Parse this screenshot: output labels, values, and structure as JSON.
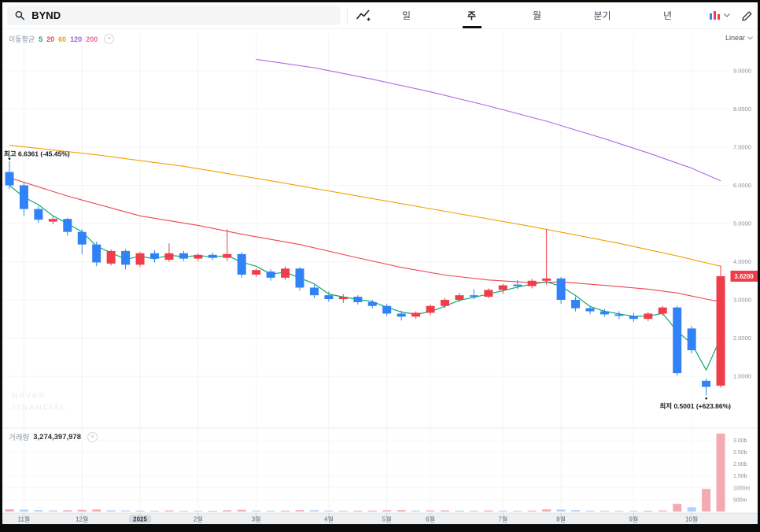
{
  "header": {
    "search_symbol": "BYND",
    "tabs": [
      {
        "label": "일",
        "active": false
      },
      {
        "label": "주",
        "active": true
      },
      {
        "label": "월",
        "active": false
      },
      {
        "label": "분기",
        "active": false
      },
      {
        "label": "년",
        "active": false
      }
    ],
    "icons": {
      "search": "magnifier",
      "chart_type": "line-chart-plus",
      "style": "colored-bars-with-chevron",
      "draw": "pencil"
    }
  },
  "legend": {
    "title": "이동평균",
    "periods": [
      {
        "label": "5",
        "color": "#0cab6b"
      },
      {
        "label": "20",
        "color": "#f04452"
      },
      {
        "label": "60",
        "color": "#f59f00"
      },
      {
        "label": "120",
        "color": "#a05ce0"
      },
      {
        "label": "200",
        "color": "#f06595"
      }
    ],
    "close_glyph": "×"
  },
  "scale": {
    "label": "Linear",
    "chevron": "v"
  },
  "volume_header": {
    "label": "거래량",
    "value": "3,274,397,978",
    "close_glyph": "×"
  },
  "annotations": {
    "high": {
      "prefix": "최고",
      "value": "6.6361",
      "pct": "(-45.45%)"
    },
    "low": {
      "prefix": "최저",
      "value": "0.5001",
      "pct": "(+623.86%)"
    }
  },
  "price_badge": {
    "value": "3.6200",
    "color": "#ef3e4b"
  },
  "watermark": [
    "NAVER",
    "FINANCIAL"
  ],
  "axes": {
    "price_labels": [
      {
        "p": 9,
        "t": "9.0000"
      },
      {
        "p": 8,
        "t": "8.0000"
      },
      {
        "p": 7,
        "t": "7.0000"
      },
      {
        "p": 6,
        "t": "6.0000"
      },
      {
        "p": 5,
        "t": "5.0000"
      },
      {
        "p": 4,
        "t": "4.0000"
      },
      {
        "p": 3,
        "t": "3.0000"
      },
      {
        "p": 2,
        "t": "2.0000"
      },
      {
        "p": 1,
        "t": "1.0000"
      }
    ],
    "volume_labels": [
      {
        "v": 3000,
        "t": "3.00b"
      },
      {
        "v": 2500,
        "t": "2.50b"
      },
      {
        "v": 2000,
        "t": "2.00b"
      },
      {
        "v": 1500,
        "t": "1.50b"
      },
      {
        "v": 1000,
        "t": "1000m"
      },
      {
        "v": 500,
        "t": "500m"
      }
    ],
    "months": [
      {
        "i": 1,
        "t": "11월"
      },
      {
        "i": 5,
        "t": "12월"
      },
      {
        "i": 9,
        "t": "2025",
        "highlight": true
      },
      {
        "i": 13,
        "t": "2월"
      },
      {
        "i": 17,
        "t": "3월"
      },
      {
        "i": 22,
        "t": "4월"
      },
      {
        "i": 26,
        "t": "5월"
      },
      {
        "i": 29,
        "t": "6월"
      },
      {
        "i": 34,
        "t": "7월"
      },
      {
        "i": 38,
        "t": "8월"
      },
      {
        "i": 43,
        "t": "9월"
      },
      {
        "i": 47,
        "t": "10월"
      }
    ]
  },
  "chart_data": {
    "type": "candlestick",
    "symbol": "BYND",
    "interval": "weekly",
    "scale": "Linear",
    "up_color": "#ef3e4b",
    "down_color": "#3182f6",
    "vol_up_color": "#f5a9b2",
    "vol_down_color": "#b3cff6",
    "price_axis_range": [
      0,
      10
    ],
    "current_price": 3.62,
    "high_marker": {
      "price": 6.6361,
      "pct_vs_current": "-45.45%"
    },
    "low_marker": {
      "price": 0.5001,
      "pct_vs_current": "+623.86%"
    },
    "latest_volume": 3274397978,
    "candles": [
      [
        6.35,
        6.6361,
        5.9,
        6.0
      ],
      [
        6.0,
        6.08,
        5.2,
        5.38
      ],
      [
        5.38,
        5.45,
        5.02,
        5.1
      ],
      [
        5.05,
        5.18,
        4.98,
        5.12
      ],
      [
        5.12,
        5.15,
        4.68,
        4.78
      ],
      [
        4.78,
        4.85,
        4.2,
        4.45
      ],
      [
        4.45,
        4.52,
        3.88,
        3.98
      ],
      [
        3.95,
        4.32,
        3.9,
        4.28
      ],
      [
        4.28,
        4.33,
        3.8,
        3.92
      ],
      [
        3.92,
        4.26,
        3.86,
        4.22
      ],
      [
        4.22,
        4.3,
        3.98,
        4.08
      ],
      [
        4.05,
        4.48,
        4.0,
        4.22
      ],
      [
        4.22,
        4.28,
        4.02,
        4.08
      ],
      [
        4.08,
        4.22,
        4.02,
        4.18
      ],
      [
        4.18,
        4.24,
        4.04,
        4.1
      ],
      [
        4.1,
        4.85,
        4.02,
        4.2
      ],
      [
        4.2,
        4.25,
        3.58,
        3.66
      ],
      [
        3.66,
        3.82,
        3.6,
        3.78
      ],
      [
        3.74,
        3.8,
        3.5,
        3.58
      ],
      [
        3.58,
        3.88,
        3.52,
        3.82
      ],
      [
        3.82,
        3.86,
        3.24,
        3.32
      ],
      [
        3.32,
        3.4,
        3.05,
        3.12
      ],
      [
        3.12,
        3.22,
        2.95,
        3.02
      ],
      [
        3.02,
        3.15,
        2.92,
        3.08
      ],
      [
        3.08,
        3.12,
        2.88,
        2.94
      ],
      [
        2.94,
        3.0,
        2.78,
        2.84
      ],
      [
        2.84,
        2.9,
        2.58,
        2.64
      ],
      [
        2.64,
        2.72,
        2.46,
        2.56
      ],
      [
        2.56,
        2.7,
        2.5,
        2.66
      ],
      [
        2.66,
        2.88,
        2.6,
        2.84
      ],
      [
        2.84,
        3.05,
        2.78,
        3.0
      ],
      [
        3.0,
        3.18,
        2.94,
        3.12
      ],
      [
        3.12,
        3.28,
        3.02,
        3.08
      ],
      [
        3.08,
        3.3,
        3.04,
        3.26
      ],
      [
        3.26,
        3.42,
        3.16,
        3.38
      ],
      [
        3.4,
        3.52,
        3.28,
        3.36
      ],
      [
        3.36,
        3.55,
        3.3,
        3.5
      ],
      [
        3.5,
        4.85,
        3.4,
        3.56
      ],
      [
        3.56,
        3.6,
        2.9,
        3.0
      ],
      [
        3.0,
        3.08,
        2.7,
        2.78
      ],
      [
        2.78,
        2.85,
        2.62,
        2.7
      ],
      [
        2.7,
        2.76,
        2.56,
        2.62
      ],
      [
        2.62,
        2.7,
        2.5,
        2.58
      ],
      [
        2.58,
        2.66,
        2.42,
        2.5
      ],
      [
        2.5,
        2.68,
        2.44,
        2.64
      ],
      [
        2.64,
        2.84,
        2.58,
        2.8
      ],
      [
        2.8,
        2.84,
        1.02,
        1.08
      ],
      [
        2.25,
        2.32,
        1.6,
        1.68
      ],
      [
        0.88,
        0.94,
        0.5001,
        0.72
      ],
      [
        0.75,
        3.9,
        0.7,
        3.62
      ]
    ],
    "volumes_m": [
      95,
      80,
      60,
      45,
      55,
      70,
      85,
      50,
      45,
      40,
      35,
      45,
      30,
      28,
      30,
      55,
      75,
      40,
      35,
      38,
      60,
      55,
      40,
      35,
      38,
      42,
      55,
      60,
      40,
      45,
      50,
      42,
      38,
      45,
      40,
      35,
      38,
      90,
      85,
      60,
      40,
      35,
      32,
      30,
      35,
      45,
      320,
      180,
      950,
      3274
    ],
    "moving_averages": [
      {
        "name": "MA5",
        "color": "#0cab6b",
        "mode": "computed_from_closes"
      },
      {
        "name": "MA20",
        "color": "#f04452",
        "points": [
          [
            0,
            6.2
          ],
          [
            4,
            5.72
          ],
          [
            9,
            5.2
          ],
          [
            13,
            4.95
          ],
          [
            16,
            4.72
          ],
          [
            20,
            4.45
          ],
          [
            24,
            4.1
          ],
          [
            27,
            3.85
          ],
          [
            30,
            3.65
          ],
          [
            33,
            3.52
          ],
          [
            36,
            3.45
          ],
          [
            38,
            3.47
          ],
          [
            41,
            3.38
          ],
          [
            44,
            3.28
          ],
          [
            46,
            3.18
          ],
          [
            48,
            3.02
          ],
          [
            49,
            2.95
          ]
        ]
      },
      {
        "name": "MA60",
        "color": "#f59f00",
        "points": [
          [
            0,
            7.05
          ],
          [
            6,
            6.8
          ],
          [
            12,
            6.5
          ],
          [
            18,
            6.12
          ],
          [
            24,
            5.72
          ],
          [
            30,
            5.32
          ],
          [
            36,
            4.92
          ],
          [
            42,
            4.48
          ],
          [
            46,
            4.15
          ],
          [
            49,
            3.88
          ]
        ]
      },
      {
        "name": "MA200",
        "color": "#b06ae0",
        "points": [
          [
            17,
            9.3
          ],
          [
            21,
            9.08
          ],
          [
            25,
            8.78
          ],
          [
            29,
            8.45
          ],
          [
            33,
            8.08
          ],
          [
            37,
            7.68
          ],
          [
            41,
            7.22
          ],
          [
            44,
            6.85
          ],
          [
            47,
            6.45
          ],
          [
            49,
            6.12
          ]
        ]
      }
    ]
  }
}
